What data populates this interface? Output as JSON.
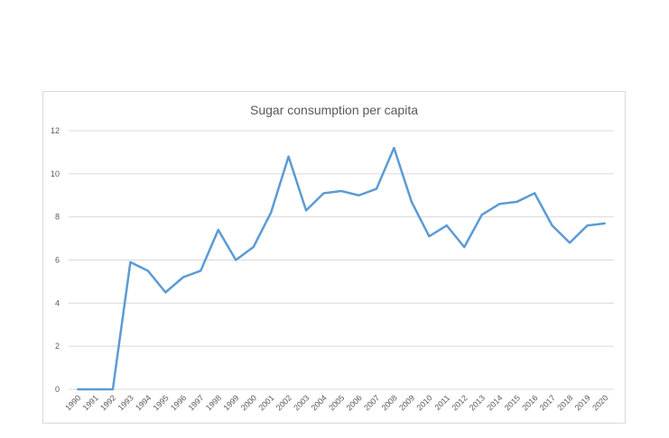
{
  "chart_data": {
    "type": "line",
    "title": "Sugar consumption per capita",
    "xlabel": "",
    "ylabel": "",
    "ylim": [
      0,
      12
    ],
    "yticks": [
      0,
      2,
      4,
      6,
      8,
      10,
      12
    ],
    "grid": true,
    "legend": "none",
    "color": "#5b9bd5",
    "categories": [
      "1990",
      "1991",
      "1992",
      "1993",
      "1994",
      "1995",
      "1996",
      "1997",
      "1998",
      "1999",
      "2000",
      "2001",
      "2002",
      "2003",
      "2004",
      "2005",
      "2006",
      "2007",
      "2008",
      "2009",
      "2010",
      "2011",
      "2012",
      "2013",
      "2014",
      "2015",
      "2016",
      "2017",
      "2018",
      "2019",
      "2020"
    ],
    "series": [
      {
        "name": "Sugar consumption per capita",
        "values": [
          0,
          0,
          0,
          5.9,
          5.5,
          4.5,
          5.2,
          5.5,
          7.4,
          6.0,
          6.6,
          8.2,
          10.8,
          8.3,
          9.1,
          9.2,
          9.0,
          9.3,
          11.2,
          8.7,
          7.1,
          7.6,
          6.6,
          8.1,
          8.6,
          8.7,
          9.1,
          7.6,
          6.8,
          7.6,
          7.7
        ]
      }
    ]
  }
}
